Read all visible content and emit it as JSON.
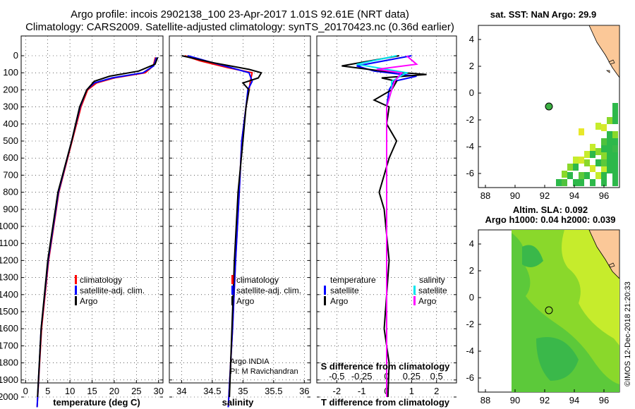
{
  "title_line1": "Argo profile: incois 2902138_100 23-Apr-2017 1.01S 92.61E (NRT data)",
  "title_line2": "Climatology: CARS2009. Satellite-adjusted climatology: synTS_20170423.nc (0.36d earlier)",
  "depth_ticks": [
    "0",
    "100",
    "200",
    "300",
    "400",
    "500",
    "600",
    "700",
    "800",
    "900",
    "1000",
    "1100",
    "1200",
    "1300",
    "1400",
    "1500",
    "1600",
    "1700",
    "1800",
    "1900",
    "2000"
  ],
  "colors": {
    "climatology": "#ff0000",
    "satellite": "#0000ff",
    "argo": "#000000",
    "sat_salinity": "#00e5ee",
    "argo_salinity": "#ff00ff"
  },
  "chart_data": [
    {
      "type": "line",
      "name": "temperature",
      "xlabel": "temperature (deg C)",
      "xlim": [
        -1,
        31
      ],
      "ylim": [
        2060,
        0
      ],
      "xticks": [
        0,
        5,
        10,
        15,
        20,
        25,
        30
      ],
      "legend": [
        "climatology",
        "satellite-adj. clim.",
        "Argo"
      ],
      "series": [
        {
          "name": "climatology",
          "depth": [
            10,
            60,
            100,
            130,
            160,
            200,
            300,
            500,
            800,
            1200,
            1600,
            2060
          ],
          "values": [
            29.3,
            28.8,
            27,
            20,
            16,
            14,
            12.5,
            10.5,
            7.5,
            5.2,
            3.6,
            2.6
          ]
        },
        {
          "name": "satellite-adj. clim.",
          "depth": [
            10,
            60,
            100,
            130,
            160,
            200,
            300,
            500,
            800,
            1200,
            1600,
            2060
          ],
          "values": [
            29.5,
            28.9,
            26.5,
            19.5,
            15.5,
            13.8,
            12.3,
            10.4,
            7.4,
            5.1,
            3.5,
            2.6
          ]
        },
        {
          "name": "Argo",
          "depth": [
            10,
            50,
            90,
            120,
            150,
            200,
            300,
            500,
            800,
            1200,
            1600,
            2000
          ],
          "values": [
            29.8,
            29.2,
            25.5,
            19,
            15.5,
            13.8,
            12.2,
            10.4,
            7.3,
            5,
            3.5,
            2.7
          ]
        }
      ]
    },
    {
      "type": "line",
      "name": "salinity",
      "xlabel": "salinity",
      "xlim": [
        33.8,
        36.1
      ],
      "ylim": [
        2060,
        0
      ],
      "xticks": [
        "34",
        "34.5",
        "35",
        "35.5",
        "36"
      ],
      "legend": [
        "climatology",
        "satellite-adj. clim.",
        "Argo"
      ],
      "annotation": [
        "Argo INDIA",
        "PI: M Ravichandran"
      ],
      "series": [
        {
          "name": "climatology",
          "depth": [
            0,
            30,
            70,
            100,
            150,
            200,
            300,
            500,
            800,
            1200,
            1600,
            2060
          ],
          "values": [
            34.05,
            34.3,
            34.75,
            35.15,
            35.12,
            35.1,
            35.05,
            34.98,
            34.94,
            34.88,
            34.83,
            34.76
          ]
        },
        {
          "name": "satellite-adj. clim.",
          "depth": [
            0,
            30,
            70,
            100,
            150,
            200,
            300,
            500,
            800,
            1200,
            1600,
            2060
          ],
          "values": [
            34.1,
            34.4,
            34.8,
            35.1,
            35.15,
            35.08,
            35.05,
            34.98,
            34.94,
            34.88,
            34.83,
            34.76
          ]
        },
        {
          "name": "Argo",
          "depth": [
            0,
            40,
            80,
            100,
            130,
            160,
            200,
            300,
            500,
            800,
            1200,
            1600,
            2000
          ],
          "values": [
            34.0,
            34.5,
            35.1,
            35.3,
            35.25,
            35.0,
            35.1,
            35.05,
            35.0,
            34.92,
            34.86,
            34.82,
            34.78
          ]
        }
      ]
    },
    {
      "type": "line",
      "name": "differences",
      "xlabel": "T difference from climatology",
      "xlabel_top": "S difference from climatology",
      "xlim": [
        -2.8,
        2.8
      ],
      "ylim": [
        2060,
        0
      ],
      "xticks": [
        "-2",
        "-1",
        "0",
        "1",
        "2"
      ],
      "xticks_s": [
        "-0.5",
        "-0.25",
        "0",
        "0.25",
        "0.5"
      ],
      "legend_left_title": "temperature",
      "legend_right_title": "salinity",
      "legend_left": [
        "satellite",
        "Argo"
      ],
      "legend_right": [
        "satellite",
        "Argo"
      ],
      "series": [
        {
          "name": "T satellite",
          "depth": [
            0,
            60,
            90,
            120,
            150,
            200,
            300,
            500,
            800,
            1200,
            1600,
            2000
          ],
          "values": [
            1.0,
            -1.2,
            -0.5,
            1.2,
            0.3,
            0.1,
            0,
            0,
            0,
            0,
            0,
            0
          ]
        },
        {
          "name": "T Argo",
          "depth": [
            0,
            60,
            90,
            110,
            130,
            150,
            200,
            260,
            300,
            400,
            500,
            600,
            800,
            900,
            1200,
            1600,
            1800,
            2000
          ],
          "values": [
            0.5,
            -1.8,
            -0.2,
            1.6,
            -0.2,
            0.4,
            0.2,
            -0.5,
            0.1,
            0,
            0.4,
            0.1,
            -0.3,
            -0.1,
            0.1,
            -0.1,
            0.1,
            0.05
          ]
        },
        {
          "name": "S satellite",
          "depth": [
            0,
            50,
            100,
            150,
            200,
            300,
            500,
            800,
            1200,
            1600,
            2000
          ],
          "values": [
            0.1,
            -0.3,
            0.2,
            0.05,
            0.05,
            0,
            0,
            0,
            0,
            0,
            0
          ]
        },
        {
          "name": "S Argo",
          "depth": [
            0,
            50,
            80,
            100,
            150,
            200,
            300,
            500,
            800,
            1200,
            1600,
            2000
          ],
          "values": [
            0.2,
            0.3,
            -0.1,
            0.15,
            0.08,
            0.05,
            0,
            0,
            0,
            0,
            0,
            0
          ]
        }
      ]
    }
  ],
  "map_top": {
    "title": "sat. SST: NaN Argo: 29.9",
    "xticks": [
      "88",
      "90",
      "92",
      "94",
      "96"
    ],
    "yticks": [
      "4",
      "2",
      "0",
      "-2",
      "-4",
      "-6"
    ]
  },
  "map_bottom": {
    "title1": "Altim. SLA: 0.092",
    "title2": "Argo h1000: 0.04 h2000: 0.039",
    "xticks": [
      "88",
      "90",
      "92",
      "94",
      "96"
    ],
    "yticks": [
      "4",
      "2",
      "0",
      "-2",
      "-4",
      "-6"
    ]
  },
  "credit": "©IMOS 12-Dec-2018 21:20:33"
}
